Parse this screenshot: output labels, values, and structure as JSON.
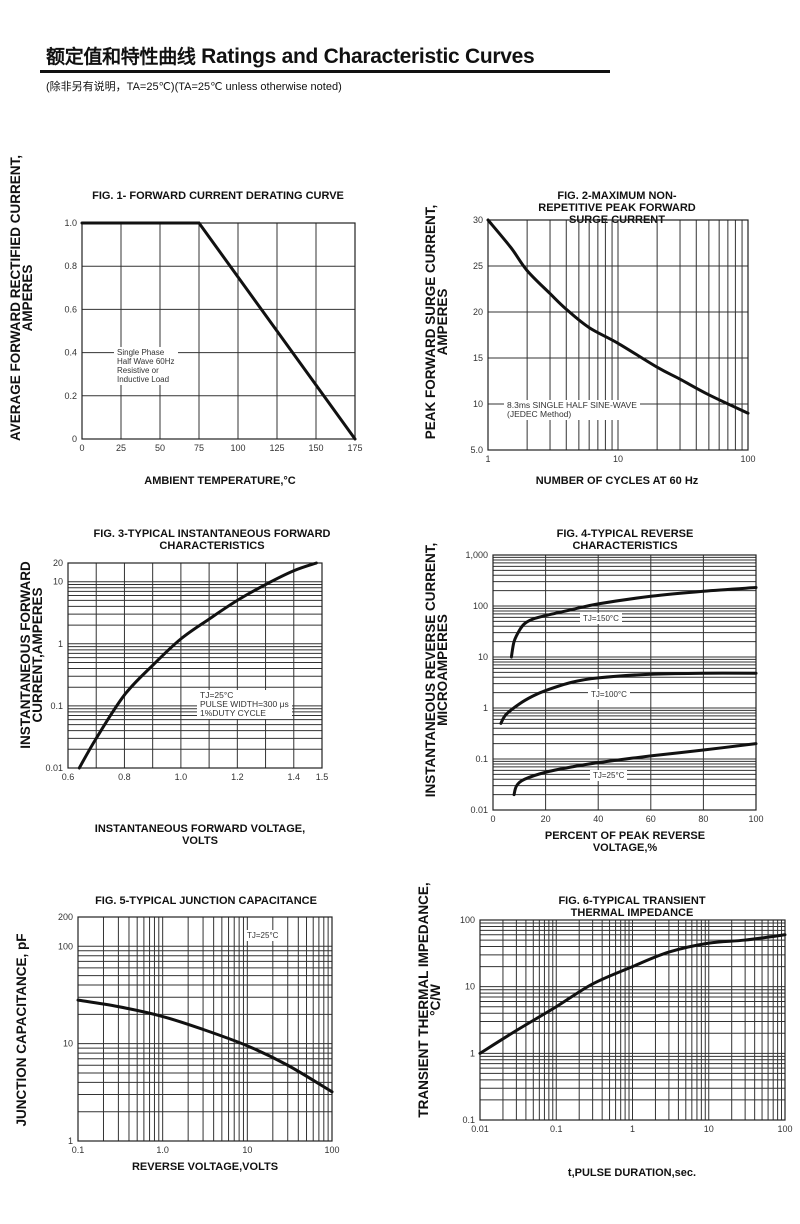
{
  "header": {
    "title_cn": "额定值和特性曲线",
    "title_en": "Ratings and Characteristic Curves",
    "subtitle": "(除非另有说明，TA=25℃)(TA=25℃  unless otherwise noted)"
  },
  "chart_data": [
    {
      "type": "line",
      "title": "FIG. 1- FORWARD CURRENT DERATING CURVE",
      "xlabel": "AMBIENT TEMPERATURE,°C",
      "ylabel": "AVERAGE FORWARD RECTIFIED CURRENT,\nAMPERES",
      "x_scale": "linear",
      "y_scale": "linear",
      "xlim": [
        0,
        175
      ],
      "ylim": [
        0,
        1.0
      ],
      "grid": true,
      "x_ticks": [
        0,
        25,
        50,
        75,
        100,
        125,
        150,
        175
      ],
      "x_tick_labels": [
        "0",
        "25",
        "50",
        "75",
        "100",
        "125",
        "150",
        "175"
      ],
      "y_ticks": [
        0,
        0.2,
        0.4,
        0.6,
        0.8,
        1.0
      ],
      "y_tick_labels": [
        "0",
        "0.2",
        "0.4",
        "0.6",
        "0.8",
        "1.0"
      ],
      "annotation": "Single Phase\nHalf Wave 60Hz\nResistive or\nInductive Load",
      "series": [
        {
          "x": [
            0,
            75,
            175
          ],
          "y": [
            1.0,
            1.0,
            0
          ]
        }
      ]
    },
    {
      "type": "line",
      "title": "FIG. 2-MAXIMUM NON-REPETITIVE PEAK FORWARD\nSURGE CURRENT",
      "xlabel": "NUMBER OF CYCLES AT 60 Hz",
      "ylabel": "PEAK  FORWARD SURGE CURRENT,\nAMPERES",
      "x_scale": "log",
      "y_scale": "linear",
      "xlim": [
        1,
        100
      ],
      "ylim": [
        5,
        30
      ],
      "grid": true,
      "x_ticks": [
        1,
        10,
        100
      ],
      "x_tick_labels": [
        "1",
        "10",
        "100"
      ],
      "y_ticks": [
        5,
        10,
        15,
        20,
        25,
        30
      ],
      "y_tick_labels": [
        "5.0",
        "10",
        "15",
        "20",
        "25",
        "30"
      ],
      "annotation": "8.3ms SINGLE HALF SINE-WAVE\n(JEDEC Method)",
      "series": [
        {
          "x": [
            1,
            1.5,
            2,
            3,
            4,
            6,
            10,
            20,
            30,
            50,
            100
          ],
          "y": [
            30,
            27,
            24.5,
            22,
            20.3,
            18.3,
            16.6,
            14,
            12.7,
            11,
            9
          ]
        }
      ]
    },
    {
      "type": "line",
      "title": "FIG. 3-TYPICAL INSTANTANEOUS FORWARD\nCHARACTERISTICS",
      "xlabel": "INSTANTANEOUS FORWARD VOLTAGE,\nVOLTS",
      "ylabel": "INSTANTANEOUS FORWARD\nCURRENT,AMPERES",
      "x_scale": "linear",
      "y_scale": "log",
      "xlim": [
        0.6,
        1.5
      ],
      "ylim": [
        0.01,
        20
      ],
      "grid": true,
      "x_ticks": [
        0.6,
        0.8,
        1.0,
        1.2,
        1.4,
        1.5
      ],
      "x_tick_labels": [
        "0.6",
        "0.8",
        "1.0",
        "1.2",
        "1.4",
        "1.5"
      ],
      "y_ticks": [
        0.01,
        0.1,
        1,
        10,
        20
      ],
      "y_tick_labels": [
        "0.01",
        "0.1",
        "1",
        "10",
        "20"
      ],
      "annotation": "TJ=25°C\nPULSE WIDTH=300 μs\n1%DUTY CYCLE",
      "series": [
        {
          "x": [
            0.64,
            0.7,
            0.8,
            0.9,
            1.0,
            1.1,
            1.2,
            1.3,
            1.4,
            1.48
          ],
          "y": [
            0.01,
            0.03,
            0.15,
            0.45,
            1.2,
            2.5,
            5,
            9,
            15,
            20
          ]
        }
      ]
    },
    {
      "type": "line",
      "title": "FIG. 4-TYPICAL REVERSE CHARACTERISTICS",
      "xlabel": "PERCENT OF PEAK REVERSE VOLTAGE,%",
      "ylabel": "INSTANTANEOUS REVERSE CURRENT,\nMICROAMPERES",
      "x_scale": "linear",
      "y_scale": "log",
      "xlim": [
        0,
        100
      ],
      "ylim": [
        0.01,
        1000
      ],
      "grid": true,
      "x_ticks": [
        0,
        20,
        40,
        60,
        80,
        100
      ],
      "x_tick_labels": [
        "0",
        "20",
        "40",
        "60",
        "80",
        "100"
      ],
      "y_ticks": [
        0.01,
        0.1,
        1,
        10,
        100,
        1000
      ],
      "y_tick_labels": [
        "0.01",
        "0.1",
        "1",
        "10",
        "100",
        "1,000"
      ],
      "series": [
        {
          "name": "TJ=150°C",
          "x": [
            7,
            8,
            10,
            12,
            15,
            20,
            30,
            40,
            60,
            80,
            100
          ],
          "y": [
            10,
            20,
            33,
            45,
            55,
            65,
            85,
            110,
            155,
            195,
            230
          ]
        },
        {
          "name": "TJ=100°C",
          "x": [
            3,
            5,
            10,
            15,
            20,
            30,
            40,
            60,
            80,
            100
          ],
          "y": [
            0.5,
            0.75,
            1.2,
            1.7,
            2.2,
            3.2,
            3.9,
            4.6,
            4.8,
            4.8
          ]
        },
        {
          "name": "TJ=25°C",
          "x": [
            8,
            9,
            12,
            20,
            30,
            40,
            60,
            80,
            100
          ],
          "y": [
            0.02,
            0.03,
            0.04,
            0.055,
            0.07,
            0.085,
            0.115,
            0.15,
            0.2
          ]
        }
      ]
    },
    {
      "type": "line",
      "title": "FIG. 5-TYPICAL JUNCTION CAPACITANCE",
      "xlabel": "REVERSE VOLTAGE,VOLTS",
      "ylabel": "JUNCTION CAPACITANCE, pF",
      "x_scale": "log",
      "y_scale": "log",
      "xlim": [
        0.1,
        100
      ],
      "ylim": [
        1,
        200
      ],
      "grid": true,
      "x_ticks": [
        0.1,
        1,
        10,
        100
      ],
      "x_tick_labels": [
        "0.1",
        "1.0",
        "10",
        "100"
      ],
      "y_ticks": [
        1,
        10,
        100,
        200
      ],
      "y_tick_labels": [
        "1",
        "10",
        "100",
        "200"
      ],
      "annotation": "TJ=25°C",
      "series": [
        {
          "x": [
            0.1,
            0.3,
            1,
            3,
            10,
            30,
            100
          ],
          "y": [
            28,
            24,
            19,
            14,
            9.5,
            6,
            3.2
          ]
        }
      ]
    },
    {
      "type": "line",
      "title": "FIG. 6-TYPICAL TRANSIENT THERMAL IMPEDANCE",
      "xlabel": "t,PULSE DURATION,sec.",
      "ylabel": "TRANSIENT THERMAL IMPEDANCE,\n°C/W",
      "x_scale": "log",
      "y_scale": "log",
      "xlim": [
        0.01,
        100
      ],
      "ylim": [
        0.1,
        100
      ],
      "grid": true,
      "x_ticks": [
        0.01,
        0.1,
        1,
        10,
        100
      ],
      "x_tick_labels": [
        "0.01",
        "0.1",
        "1",
        "10",
        "100"
      ],
      "y_ticks": [
        0.1,
        1,
        10,
        100
      ],
      "y_tick_labels": [
        "0.1",
        "1",
        "10",
        "100"
      ],
      "series": [
        {
          "x": [
            0.01,
            0.03,
            0.1,
            0.3,
            1,
            3,
            10,
            30,
            100
          ],
          "y": [
            1,
            2.2,
            5,
            11,
            20,
            33,
            45,
            50,
            60
          ]
        }
      ]
    }
  ]
}
